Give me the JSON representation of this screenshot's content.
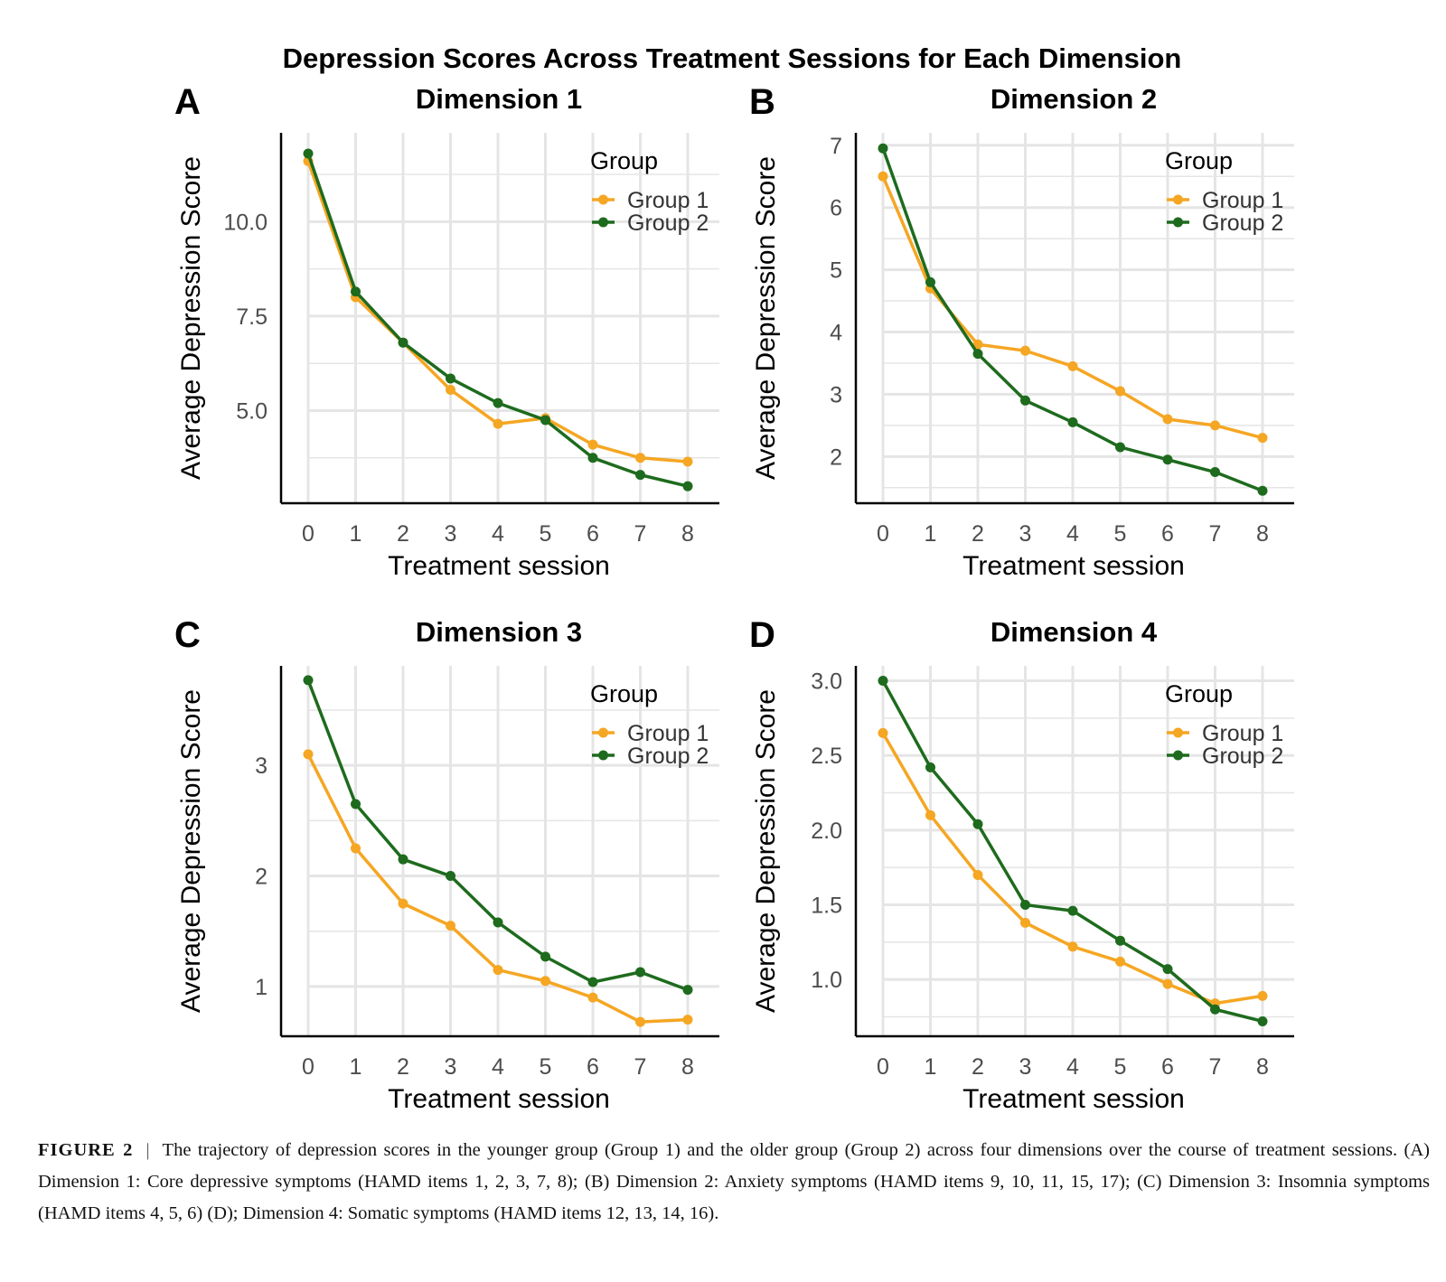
{
  "figure_title": "Depression Scores Across Treatment Sessions for Each Dimension",
  "caption": {
    "label": "FIGURE 2",
    "text": "The trajectory of depression scores in the younger group (Group 1) and the older group (Group 2) across four dimensions over the course of treatment sessions. (A) Dimension 1: Core depressive symptoms (HAMD items 1, 2, 3, 7, 8); (B) Dimension 2: Anxiety symptoms (HAMD items 9, 10, 11, 15, 17); (C) Dimension 3: Insomnia symptoms (HAMD items 4, 5, 6) (D); Dimension 4: Somatic symptoms (HAMD items 12, 13, 14, 16)."
  },
  "colors": {
    "group1": "#F5A623",
    "group2": "#1E6B1E",
    "grid": "#E5E5E5",
    "axis": "#000000"
  },
  "chart_data": [
    {
      "type": "line",
      "panel_label": "A",
      "title": "Dimension 1",
      "xlabel": "Treatment session",
      "ylabel": "Average Depression Score",
      "x": [
        0,
        1,
        2,
        3,
        4,
        5,
        6,
        7,
        8
      ],
      "ylim": [
        2.55,
        12.35
      ],
      "yticks": [
        5.0,
        7.5,
        10.0
      ],
      "ytick_labels": [
        "5.0",
        "7.5",
        "10.0"
      ],
      "legend_title": "Group",
      "legend_position": "top-right",
      "grid": true,
      "series": [
        {
          "name": "Group 1",
          "values": [
            11.6,
            8.0,
            6.8,
            5.55,
            4.65,
            4.8,
            4.1,
            3.75,
            3.65
          ]
        },
        {
          "name": "Group 2",
          "values": [
            11.8,
            8.15,
            6.8,
            5.85,
            5.2,
            4.75,
            3.75,
            3.3,
            3.0
          ]
        }
      ]
    },
    {
      "type": "line",
      "panel_label": "B",
      "title": "Dimension 2",
      "xlabel": "Treatment session",
      "ylabel": "Average Depression Score",
      "x": [
        0,
        1,
        2,
        3,
        4,
        5,
        6,
        7,
        8
      ],
      "ylim": [
        1.25,
        7.2
      ],
      "yticks": [
        2,
        3,
        4,
        5,
        6,
        7
      ],
      "ytick_labels": [
        "2",
        "3",
        "4",
        "5",
        "6",
        "7"
      ],
      "legend_title": "Group",
      "legend_position": "top-right",
      "grid": true,
      "series": [
        {
          "name": "Group 1",
          "values": [
            6.5,
            4.7,
            3.8,
            3.7,
            3.45,
            3.05,
            2.6,
            2.5,
            2.3
          ]
        },
        {
          "name": "Group 2",
          "values": [
            6.95,
            4.8,
            3.65,
            2.9,
            2.55,
            2.15,
            1.95,
            1.75,
            1.45
          ]
        }
      ]
    },
    {
      "type": "line",
      "panel_label": "C",
      "title": "Dimension 3",
      "xlabel": "Treatment session",
      "ylabel": "Average Depression Score",
      "x": [
        0,
        1,
        2,
        3,
        4,
        5,
        6,
        7,
        8
      ],
      "ylim": [
        0.55,
        3.9
      ],
      "yticks": [
        1,
        2,
        3
      ],
      "ytick_labels": [
        "1",
        "2",
        "3"
      ],
      "legend_title": "Group",
      "legend_position": "top-right",
      "grid": true,
      "series": [
        {
          "name": "Group 1",
          "values": [
            3.1,
            2.25,
            1.75,
            1.55,
            1.15,
            1.05,
            0.9,
            0.68,
            0.7
          ]
        },
        {
          "name": "Group 2",
          "values": [
            3.77,
            2.65,
            2.15,
            2.0,
            1.58,
            1.27,
            1.04,
            1.13,
            0.97
          ]
        }
      ]
    },
    {
      "type": "line",
      "panel_label": "D",
      "title": "Dimension 4",
      "xlabel": "Treatment session",
      "ylabel": "Average Depression Score",
      "x": [
        0,
        1,
        2,
        3,
        4,
        5,
        6,
        7,
        8
      ],
      "ylim": [
        0.62,
        3.1
      ],
      "yticks": [
        1.0,
        1.5,
        2.0,
        2.5,
        3.0
      ],
      "ytick_labels": [
        "1.0",
        "1.5",
        "2.0",
        "2.5",
        "3.0"
      ],
      "legend_title": "Group",
      "legend_position": "top-right",
      "grid": true,
      "series": [
        {
          "name": "Group 1",
          "values": [
            2.65,
            2.1,
            1.7,
            1.38,
            1.22,
            1.12,
            0.97,
            0.84,
            0.89
          ]
        },
        {
          "name": "Group 2",
          "values": [
            3.0,
            2.42,
            2.04,
            1.5,
            1.46,
            1.26,
            1.07,
            0.8,
            0.72
          ]
        }
      ]
    }
  ]
}
